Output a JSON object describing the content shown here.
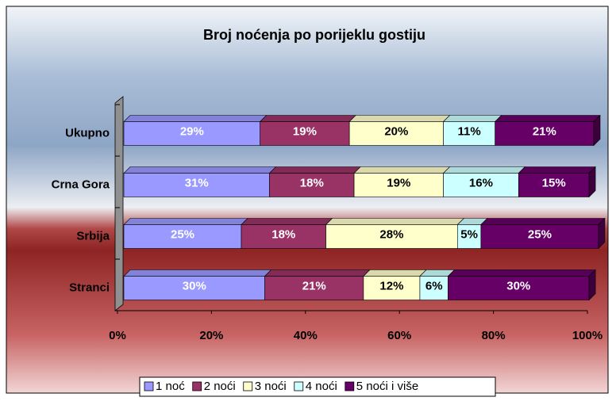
{
  "chart_data": {
    "type": "stacked_bar_horizontal",
    "title": "Broj noćenja po porijeklu gostiju",
    "categories": [
      "Ukupno",
      "Crna Gora",
      "Srbija",
      "Stranci"
    ],
    "series": [
      {
        "name": "1 noć",
        "color": "#9999ff",
        "values": [
          29,
          31,
          25,
          30
        ],
        "value_labels": [
          "29%",
          "31%",
          "25%",
          "30%"
        ]
      },
      {
        "name": "2 noći",
        "color": "#993366",
        "values": [
          19,
          18,
          18,
          21
        ],
        "value_labels": [
          "19%",
          "18%",
          "18%",
          "21%"
        ]
      },
      {
        "name": "3 noći",
        "color": "#ffffcc",
        "values": [
          20,
          19,
          28,
          12
        ],
        "value_labels": [
          "20%",
          "19%",
          "28%",
          "12%"
        ]
      },
      {
        "name": "4 noći",
        "color": "#ccffff",
        "values": [
          11,
          16,
          5,
          6
        ],
        "value_labels": [
          "11%",
          "16%",
          "5%",
          "6%"
        ]
      },
      {
        "name": "5 noći i više",
        "color": "#660066",
        "values": [
          21,
          15,
          25,
          30
        ],
        "value_labels": [
          "21%",
          "15%",
          "25%",
          "30%"
        ]
      }
    ],
    "xlim": [
      0,
      100
    ],
    "xticks": [
      {
        "value": 0,
        "label": "0%"
      },
      {
        "value": 20,
        "label": "20%"
      },
      {
        "value": 40,
        "label": "40%"
      },
      {
        "value": 60,
        "label": "60%"
      },
      {
        "value": 80,
        "label": "80%"
      },
      {
        "value": 100,
        "label": "100%"
      }
    ],
    "legend": "bottom"
  }
}
